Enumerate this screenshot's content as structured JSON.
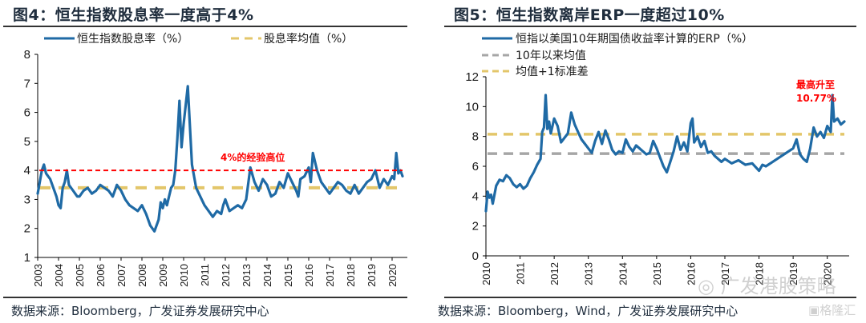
{
  "left": {
    "title": "图4：恒生指数股息率一度高于4%",
    "source": "数据来源：Bloomberg，广发证券发展研究中心"
  },
  "right": {
    "title": "图5：恒生指数离岸ERP一度超过10%",
    "source": "数据来源：Bloomberg，Wind，广发证券发展研究中心"
  },
  "watermark": {
    "wechat": "广发港股策略",
    "brand": "格隆汇"
  },
  "colors": {
    "series_blue": "#1f6aa5",
    "mean_gold": "#e3c66a",
    "mean_gray": "#a6a6a6",
    "threshold_red": "#ff0000"
  },
  "chart_data": [
    {
      "type": "line",
      "title": "图4：恒生指数股息率一度高于4%",
      "xlabel": "",
      "ylabel": "",
      "xlim": [
        2003,
        2020.5
      ],
      "ylim": [
        1,
        8
      ],
      "yticks": [
        1,
        2,
        3,
        4,
        5,
        6,
        7,
        8
      ],
      "xticks": [
        "2003",
        "2004",
        "2005",
        "2006",
        "2007",
        "2008",
        "2009",
        "2010",
        "2011",
        "2012",
        "2013",
        "2014",
        "2015",
        "2016",
        "2017",
        "2018",
        "2019",
        "2020"
      ],
      "grid": false,
      "legend": {
        "placement": "top",
        "entries": [
          "恒生指数股息率（%）",
          "股息率均值（%）"
        ]
      },
      "series": [
        {
          "name": "恒生指数股息率（%）",
          "x": [
            2003.0,
            2003.1,
            2003.2,
            2003.3,
            2003.4,
            2003.5,
            2003.6,
            2003.7,
            2003.8,
            2003.9,
            2004.0,
            2004.1,
            2004.2,
            2004.3,
            2004.4,
            2004.5,
            2004.6,
            2004.7,
            2004.8,
            2004.9,
            2005.0,
            2005.2,
            2005.4,
            2005.6,
            2005.8,
            2006.0,
            2006.2,
            2006.4,
            2006.6,
            2006.8,
            2007.0,
            2007.2,
            2007.4,
            2007.6,
            2007.8,
            2008.0,
            2008.2,
            2008.4,
            2008.6,
            2008.8,
            2008.9,
            2009.0,
            2009.1,
            2009.2,
            2009.3,
            2009.4,
            2009.5,
            2009.6,
            2009.7,
            2009.8,
            2009.9,
            2010.0,
            2010.2,
            2010.4,
            2010.6,
            2010.8,
            2011.0,
            2011.2,
            2011.4,
            2011.6,
            2011.8,
            2011.9,
            2012.0,
            2012.1,
            2012.2,
            2012.4,
            2012.6,
            2012.8,
            2013.0,
            2013.2,
            2013.4,
            2013.6,
            2013.8,
            2014.0,
            2014.2,
            2014.4,
            2014.6,
            2014.8,
            2015.0,
            2015.2,
            2015.4,
            2015.5,
            2015.6,
            2015.8,
            2016.0,
            2016.1,
            2016.2,
            2016.4,
            2016.6,
            2016.8,
            2017.0,
            2017.2,
            2017.4,
            2017.6,
            2017.8,
            2018.0,
            2018.2,
            2018.4,
            2018.6,
            2018.8,
            2019.0,
            2019.2,
            2019.4,
            2019.6,
            2019.8,
            2020.0,
            2020.1,
            2020.2,
            2020.3,
            2020.4,
            2020.5
          ],
          "values": [
            3.2,
            3.6,
            4.0,
            4.2,
            3.9,
            3.8,
            3.7,
            3.5,
            3.3,
            3.1,
            2.8,
            2.7,
            3.4,
            3.6,
            4.0,
            3.5,
            3.4,
            3.3,
            3.2,
            3.1,
            3.1,
            3.3,
            3.4,
            3.2,
            3.3,
            3.5,
            3.4,
            3.3,
            3.1,
            3.5,
            3.3,
            3.0,
            2.8,
            2.7,
            2.6,
            2.8,
            2.5,
            2.1,
            1.9,
            2.3,
            2.9,
            2.7,
            3.0,
            2.8,
            3.1,
            3.4,
            3.5,
            4.0,
            5.1,
            6.4,
            4.8,
            5.6,
            6.9,
            4.2,
            3.4,
            3.1,
            2.8,
            2.6,
            2.4,
            2.6,
            2.5,
            2.8,
            3.0,
            2.8,
            2.6,
            2.7,
            2.8,
            2.7,
            3.0,
            4.1,
            3.6,
            3.3,
            3.7,
            3.5,
            3.1,
            3.2,
            3.6,
            3.4,
            3.9,
            3.6,
            3.3,
            3.1,
            3.7,
            3.8,
            4.1,
            3.6,
            4.6,
            4.0,
            3.6,
            3.4,
            3.2,
            3.4,
            3.6,
            3.5,
            3.3,
            3.2,
            3.5,
            3.2,
            3.4,
            3.6,
            3.7,
            4.0,
            3.4,
            3.7,
            3.5,
            3.8,
            3.7,
            4.6,
            3.9,
            4.0,
            3.8
          ]
        },
        {
          "name": "股息率均值（%）",
          "x": [
            2003,
            2020.5
          ],
          "values": [
            3.4,
            3.4
          ]
        }
      ],
      "reference_lines": [
        {
          "y": 4.0,
          "style": "dashed",
          "color": "red",
          "label": "4%的经验高位"
        }
      ],
      "annotations": [
        {
          "text": "4%的经验高位",
          "near_x": 2015,
          "near_y": 4.4
        }
      ]
    },
    {
      "type": "line",
      "title": "图5：恒生指数离岸ERP一度超过10%",
      "xlabel": "",
      "ylabel": "",
      "xlim": [
        2010,
        2020.5
      ],
      "ylim": [
        0,
        12
      ],
      "yticks": [
        0,
        2,
        4,
        6,
        8,
        10,
        12
      ],
      "xticks": [
        "2010",
        "2011",
        "2012",
        "2013",
        "2014",
        "2015",
        "2016",
        "2017",
        "2018",
        "2019",
        "2020"
      ],
      "grid": false,
      "legend": {
        "placement": "top-left",
        "entries": [
          "恒指以美国10年期国债收益率计算的ERP（%）",
          "10年以来均值",
          "均值+1标准差"
        ]
      },
      "series": [
        {
          "name": "恒指以美国10年期国债收益率计算的ERP（%）",
          "x": [
            2010.0,
            2010.05,
            2010.1,
            2010.15,
            2010.2,
            2010.3,
            2010.4,
            2010.5,
            2010.6,
            2010.7,
            2010.8,
            2010.9,
            2011.0,
            2011.1,
            2011.2,
            2011.3,
            2011.4,
            2011.5,
            2011.6,
            2011.65,
            2011.7,
            2011.75,
            2011.8,
            2011.85,
            2011.9,
            2012.0,
            2012.1,
            2012.2,
            2012.3,
            2012.4,
            2012.5,
            2012.6,
            2012.7,
            2012.8,
            2012.9,
            2013.0,
            2013.1,
            2013.2,
            2013.3,
            2013.4,
            2013.5,
            2013.6,
            2013.7,
            2013.8,
            2013.9,
            2014.0,
            2014.1,
            2014.2,
            2014.3,
            2014.4,
            2014.5,
            2014.6,
            2014.7,
            2014.8,
            2014.9,
            2015.0,
            2015.1,
            2015.2,
            2015.3,
            2015.4,
            2015.5,
            2015.6,
            2015.7,
            2015.8,
            2015.9,
            2016.0,
            2016.05,
            2016.1,
            2016.2,
            2016.3,
            2016.4,
            2016.5,
            2016.6,
            2016.7,
            2016.8,
            2016.9,
            2017.0,
            2017.2,
            2017.4,
            2017.6,
            2017.8,
            2018.0,
            2018.1,
            2018.2,
            2018.4,
            2018.6,
            2018.8,
            2019.0,
            2019.1,
            2019.2,
            2019.3,
            2019.4,
            2019.5,
            2019.6,
            2019.7,
            2019.8,
            2019.9,
            2020.0,
            2020.1,
            2020.15,
            2020.2,
            2020.3,
            2020.4,
            2020.5
          ],
          "values": [
            3.0,
            4.3,
            3.9,
            4.1,
            3.5,
            4.7,
            5.1,
            5.0,
            5.4,
            5.2,
            4.8,
            4.6,
            4.8,
            4.5,
            4.7,
            5.2,
            5.6,
            6.1,
            6.5,
            8.3,
            8.6,
            10.77,
            8.5,
            9.0,
            8.2,
            9.2,
            8.7,
            7.6,
            7.9,
            8.2,
            9.6,
            8.8,
            8.3,
            7.8,
            7.5,
            7.2,
            6.9,
            7.7,
            8.3,
            7.5,
            8.4,
            7.8,
            7.1,
            6.8,
            7.0,
            6.9,
            7.8,
            7.3,
            7.0,
            7.4,
            7.2,
            7.0,
            6.8,
            6.9,
            7.7,
            7.2,
            6.6,
            6.0,
            5.6,
            6.3,
            7.0,
            8.0,
            7.1,
            7.6,
            7.0,
            8.9,
            9.2,
            7.6,
            8.0,
            7.3,
            7.7,
            6.9,
            7.0,
            6.7,
            6.5,
            6.3,
            6.5,
            6.2,
            6.4,
            6.1,
            6.2,
            5.7,
            6.1,
            6.0,
            6.3,
            6.6,
            6.9,
            7.2,
            7.8,
            6.8,
            6.5,
            6.3,
            7.2,
            8.6,
            8.0,
            8.3,
            7.9,
            8.7,
            8.3,
            10.77,
            9.0,
            9.2,
            8.8,
            9.0
          ]
        },
        {
          "name": "10年以来均值",
          "x": [
            2010,
            2020.5
          ],
          "values": [
            6.85,
            6.85
          ]
        },
        {
          "name": "均值+1标准差",
          "x": [
            2010,
            2020.5
          ],
          "values": [
            8.15,
            8.15
          ]
        }
      ],
      "annotations": [
        {
          "text": "最高升至",
          "near_x": 2019.8,
          "near_y": 11.5
        },
        {
          "text": "10.77%",
          "near_x": 2019.8,
          "near_y": 10.6
        }
      ]
    }
  ]
}
